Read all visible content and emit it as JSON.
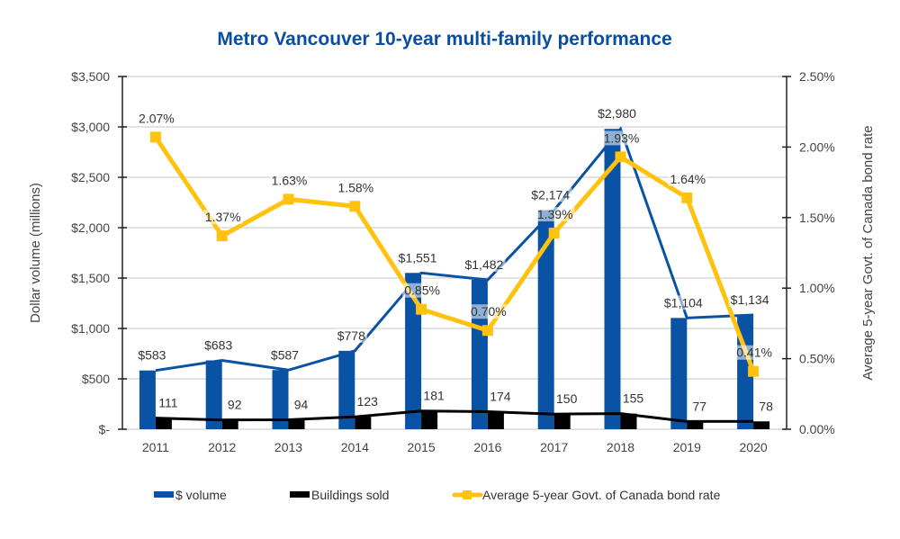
{
  "chart_data": {
    "type": "bar",
    "title": "Metro Vancouver 10-year multi-family performance",
    "categories": [
      "2011",
      "2012",
      "2013",
      "2014",
      "2015",
      "2016",
      "2017",
      "2018",
      "2019",
      "2020"
    ],
    "series": [
      {
        "name": "$ volume",
        "kind": "bar+line",
        "axis": "left",
        "color": "#0a52a3",
        "values": [
          583,
          683,
          587,
          778,
          1551,
          1482,
          2174,
          2980,
          1104,
          1134
        ],
        "labels": [
          "$583",
          "$683",
          "$587",
          "$778",
          "$1,551",
          "$1,482",
          "$2,174",
          "$2,980",
          "$1,104",
          "$1,134"
        ]
      },
      {
        "name": "Buildings sold",
        "kind": "bar+line",
        "axis": "left",
        "color": "#000000",
        "values": [
          111,
          92,
          94,
          123,
          181,
          174,
          150,
          155,
          77,
          78
        ],
        "labels": [
          "111",
          "92",
          "94",
          "123",
          "181",
          "174",
          "150",
          "155",
          "77",
          "78"
        ]
      },
      {
        "name": "Average 5-year Govt. of Canada bond rate",
        "kind": "line",
        "axis": "right",
        "color": "#ffc20e",
        "values": [
          2.07,
          1.37,
          1.63,
          1.58,
          0.85,
          0.7,
          1.39,
          1.93,
          1.64,
          0.41
        ],
        "labels": [
          "2.07%",
          "1.37%",
          "1.63%",
          "1.58%",
          "0.85%",
          "0.70%",
          "1.39%",
          "1.93%",
          "1.64%",
          "0.41%"
        ]
      }
    ],
    "ylabel": "Dollar volume (millions)",
    "ylabel_right": "Average 5-year Govt. of Canada bond rate",
    "ylim": [
      0,
      3500
    ],
    "ylim_right": [
      0,
      2.5
    ],
    "yticks": [
      0,
      500,
      1000,
      1500,
      2000,
      2500,
      3000,
      3500
    ],
    "ytick_labels": [
      "$-",
      "$500",
      "$1,000",
      "$1,500",
      "$2,000",
      "$2,500",
      "$3,000",
      "$3,500"
    ],
    "yticks_right": [
      0,
      0.5,
      1.0,
      1.5,
      2.0,
      2.5
    ],
    "ytick_labels_right": [
      "0.00%",
      "0.50%",
      "1.00%",
      "1.50%",
      "2.00%",
      "2.50%"
    ],
    "grid": true,
    "legend": {
      "position": "bottom",
      "entries": [
        "$ volume",
        "Buildings sold",
        "Average 5-year Govt. of Canada bond rate"
      ]
    }
  }
}
